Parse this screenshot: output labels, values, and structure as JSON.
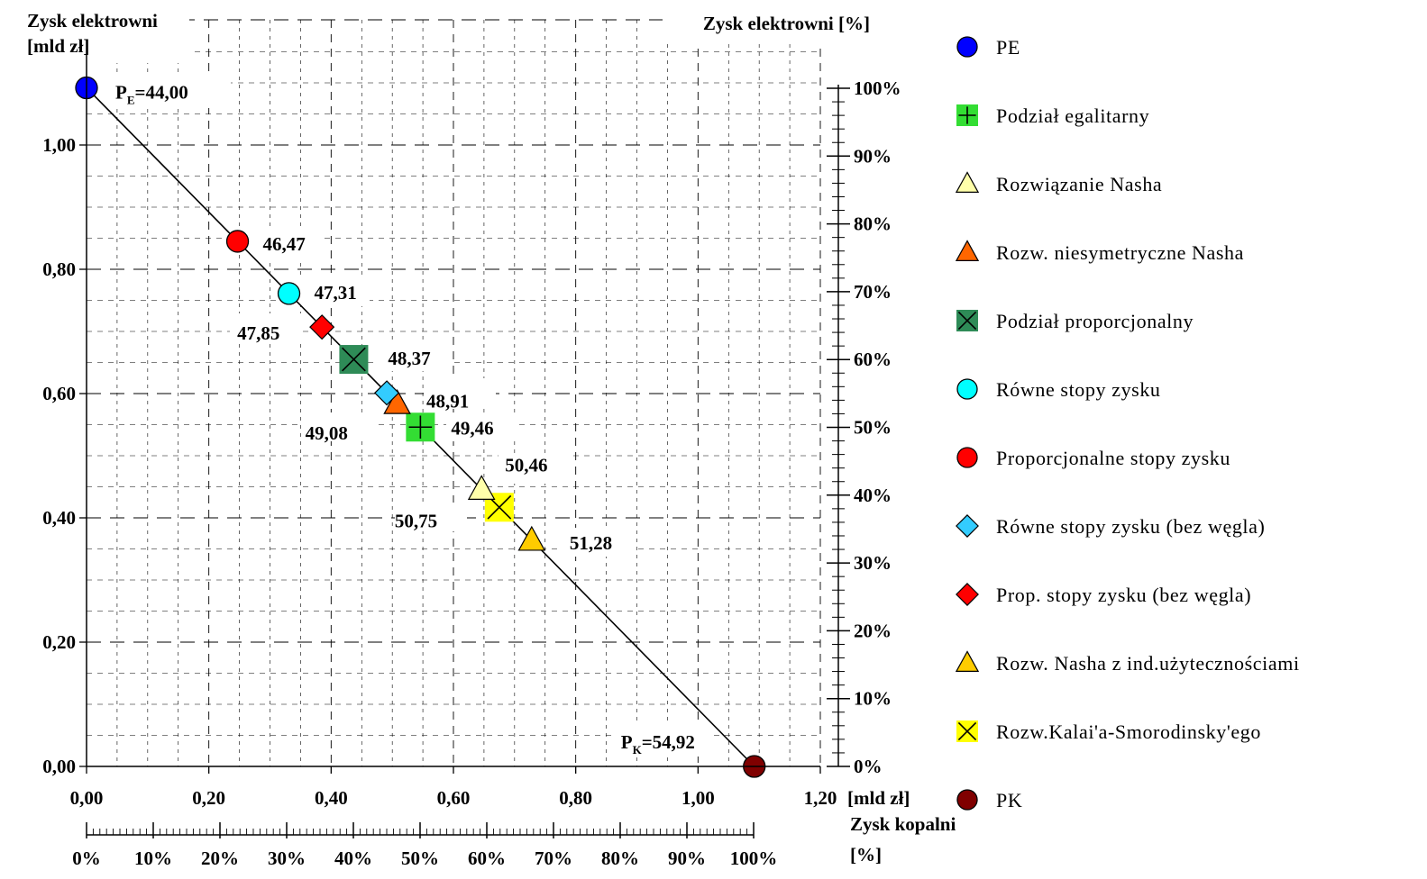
{
  "chart_data": {
    "type": "scatter",
    "titles": {
      "y_left": [
        "Zysk elektrowni",
        "[mld zł]"
      ],
      "y_right": "Zysk elektrowni [%]",
      "x_unit": "[mld zł]",
      "x_bottom": [
        "Zysk kopalni",
        "[%]"
      ]
    },
    "x_axis": {
      "min": 0,
      "max": 1.2,
      "ticks": [
        0,
        0.2,
        0.4,
        0.6,
        0.8,
        1.0,
        1.2
      ],
      "tick_labels": [
        "0,00",
        "0,20",
        "0,40",
        "0,60",
        "0,80",
        "1,00",
        "1,20"
      ]
    },
    "y_axis": {
      "min": 0,
      "max": 1.1,
      "ticks": [
        0,
        0.2,
        0.4,
        0.6,
        0.8,
        1.0
      ],
      "tick_labels": [
        "0,00",
        "0,20",
        "0,40",
        "0,60",
        "0,80",
        "1,00"
      ]
    },
    "y_right_axis": {
      "ticks": [
        0,
        10,
        20,
        30,
        40,
        50,
        60,
        70,
        80,
        90,
        100
      ],
      "tick_labels": [
        "0%",
        "10%",
        "20%",
        "30%",
        "40%",
        "50%",
        "60%",
        "70%",
        "80%",
        "90%",
        "100%"
      ]
    },
    "x_bottom_axis": {
      "ticks": [
        0,
        10,
        20,
        30,
        40,
        50,
        60,
        70,
        80,
        90,
        100
      ],
      "tick_labels": [
        "0%",
        "10%",
        "20%",
        "30%",
        "40%",
        "50%",
        "60%",
        "70%",
        "80%",
        "90%",
        "100%"
      ]
    },
    "frontier_line": {
      "from": [
        0,
        1.092
      ],
      "to": [
        1.092,
        0
      ]
    },
    "series": [
      {
        "name": "PE",
        "marker": "circle",
        "color": "#0000ff",
        "x": 0.0,
        "y": 1.092,
        "label": "=44,00",
        "label_prefix": "P",
        "label_sub": "E"
      },
      {
        "name": "Podział egalitarny",
        "marker": "square-plus",
        "color": "#33dd33",
        "x": 0.546,
        "y": 0.546,
        "label": "49,46"
      },
      {
        "name": "Rozwiązanie Nasha",
        "marker": "triangle",
        "color": "#ffffaa",
        "x": 0.646,
        "y": 0.446,
        "label": "50,46"
      },
      {
        "name": "Rozw. niesymetryczne Nasha",
        "marker": "triangle",
        "color": "#ff6600",
        "x": 0.508,
        "y": 0.584,
        "label": "49,08"
      },
      {
        "name": "Podział proporcjonalny",
        "marker": "square-x",
        "color": "#2e8b57",
        "x": 0.437,
        "y": 0.655,
        "label": "48,37"
      },
      {
        "name": "Równe stopy zysku",
        "marker": "circle",
        "color": "#00ffff",
        "x": 0.331,
        "y": 0.761,
        "label": "47,31"
      },
      {
        "name": "Proporcjonalne stopy zysku",
        "marker": "circle",
        "color": "#ff0000",
        "x": 0.247,
        "y": 0.845,
        "label": "46,47"
      },
      {
        "name": "Równe stopy zysku (bez węgla)",
        "marker": "diamond",
        "color": "#33ccff",
        "x": 0.491,
        "y": 0.601,
        "label": "48,91"
      },
      {
        "name": "Prop. stopy zysku (bez węgla)",
        "marker": "diamond",
        "color": "#ff0000",
        "x": 0.385,
        "y": 0.707,
        "label": "47,85"
      },
      {
        "name": "Rozw. Nasha z ind.użytecznościami",
        "marker": "triangle",
        "color": "#ffcc00",
        "x": 0.728,
        "y": 0.364,
        "label": "51,28"
      },
      {
        "name": "Rozw.Kalai'a-Smorodinsky'ego",
        "marker": "square-x",
        "color": "#ffff00",
        "x": 0.675,
        "y": 0.417,
        "label": "50,75"
      },
      {
        "name": "PK",
        "marker": "circle",
        "color": "#800000",
        "x": 1.092,
        "y": 0.0,
        "label": "=54,92",
        "label_prefix": "P",
        "label_sub": "K"
      }
    ]
  }
}
